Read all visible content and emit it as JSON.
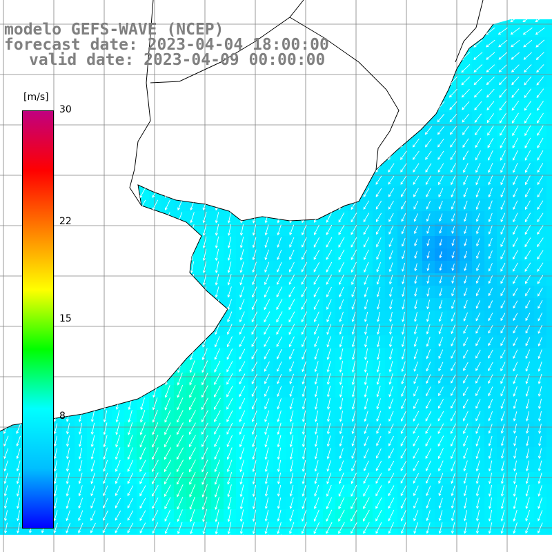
{
  "header": {
    "line1": "modelo GEFS-WAVE (NCEP)",
    "line2": "forecast date: 2023-04-04 18:00:00",
    "line3": "valid date: 2023-04-09 00:00:00"
  },
  "colorbar": {
    "unit": "[m/s]",
    "min": 0,
    "max": 30,
    "tick_labels": [
      "30",
      "22",
      "15",
      "8"
    ],
    "tick_values": [
      30,
      22,
      15,
      8
    ],
    "colors": [
      "#0000ff",
      "#00bfff",
      "#00ffff",
      "#00ff00",
      "#ffff00",
      "#ff8000",
      "#ff0000",
      "#c00080"
    ]
  },
  "map": {
    "variable": "wind speed",
    "field_summary": "Winds mostly from the north-east, blowing toward the south-west, strongest (about 9–11 m/s) off the southern coast and weakest (about 3–5 m/s) in the north-east offshore area",
    "land_color": "#ffffff",
    "coast_color": "#000000",
    "grid_color": "#808080",
    "arrow_color": "#ffffff"
  }
}
